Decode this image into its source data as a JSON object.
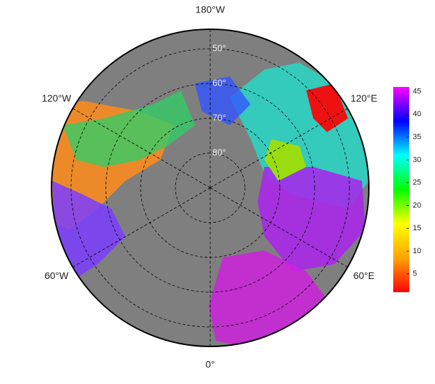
{
  "map": {
    "meridians": [
      {
        "value": -180,
        "label": "180°W"
      },
      {
        "value": 120,
        "label": "120°E"
      },
      {
        "value": 60,
        "label": "60°E"
      },
      {
        "value": 0,
        "label": "0°"
      },
      {
        "value": -60,
        "label": "60°W"
      },
      {
        "value": -120,
        "label": "120°W"
      }
    ],
    "parallels": [
      {
        "value": 50,
        "label": "50°"
      },
      {
        "value": 60,
        "label": "60°"
      },
      {
        "value": 70,
        "label": "70°"
      },
      {
        "value": 80,
        "label": "80°"
      }
    ],
    "colorbar": {
      "lim": [
        1,
        46
      ],
      "ticks": [
        5,
        10,
        15,
        20,
        25,
        30,
        35,
        40,
        45
      ],
      "colors": [
        "#ff0000",
        "#ffa500",
        "#ffff00",
        "#00ff00",
        "#00ffff",
        "#0000ff",
        "#ff00ff"
      ]
    }
  }
}
